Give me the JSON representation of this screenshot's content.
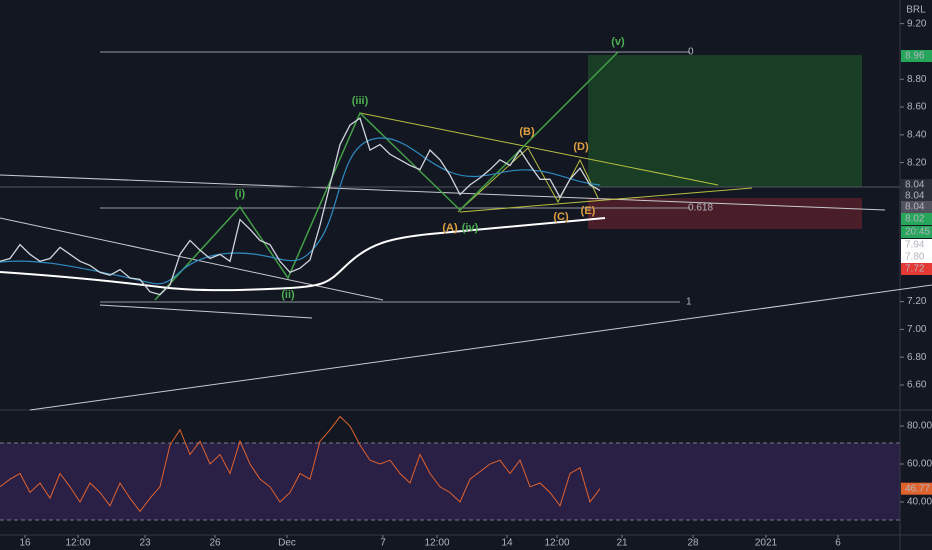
{
  "chart_data": {
    "type": "line",
    "currency": "BRL",
    "xlim": [
      0,
      180
    ],
    "xticks": [
      {
        "value": 5,
        "label": "16"
      },
      {
        "value": 15.6,
        "label": "12:00"
      },
      {
        "value": 29,
        "label": "23"
      },
      {
        "value": 43,
        "label": "26"
      },
      {
        "value": 57.4,
        "label": "Dec"
      },
      {
        "value": 76.6,
        "label": "7"
      },
      {
        "value": 87.4,
        "label": "12:00"
      },
      {
        "value": 101.4,
        "label": "14"
      },
      {
        "value": 111.4,
        "label": "12:00"
      },
      {
        "value": 124.4,
        "label": "21"
      },
      {
        "value": 138.6,
        "label": "28"
      },
      {
        "value": 153.2,
        "label": "2021"
      },
      {
        "value": 167.6,
        "label": "6"
      }
    ],
    "ylim": [
      6.42,
      9.37
    ],
    "yticks": [
      {
        "value": 9.2,
        "label": "9.20"
      },
      {
        "value": 8.8,
        "label": "8.80"
      },
      {
        "value": 8.6,
        "label": "8.60"
      },
      {
        "value": 8.4,
        "label": "8.40"
      },
      {
        "value": 8.2,
        "label": "8.20"
      },
      {
        "value": 7.2,
        "label": "7.20"
      },
      {
        "value": 7.0,
        "label": "7.00"
      },
      {
        "value": 6.8,
        "label": "6.80"
      },
      {
        "value": 6.6,
        "label": "6.60"
      }
    ],
    "series": [
      {
        "color": "#d0d4dc",
        "x": [
          0,
          2,
          4,
          6,
          8,
          10,
          12,
          14,
          16,
          18,
          20,
          22,
          24,
          26,
          28,
          30,
          32,
          34,
          36,
          38,
          40,
          42,
          44,
          46,
          48,
          50,
          52,
          54,
          56,
          58,
          60,
          62,
          64,
          66,
          68,
          70,
          72,
          74,
          76,
          78,
          80,
          82,
          84,
          86,
          88,
          90,
          92,
          94,
          96,
          98,
          100,
          102,
          104,
          106,
          108,
          110,
          112,
          114,
          116,
          118,
          120
        ],
        "values": [
          7.49,
          7.51,
          7.61,
          7.54,
          7.49,
          7.51,
          7.59,
          7.54,
          7.49,
          7.46,
          7.41,
          7.39,
          7.43,
          7.37,
          7.36,
          7.27,
          7.25,
          7.32,
          7.54,
          7.64,
          7.57,
          7.51,
          7.54,
          7.49,
          7.79,
          7.72,
          7.64,
          7.61,
          7.49,
          7.41,
          7.44,
          7.5,
          7.75,
          8.04,
          8.33,
          8.47,
          8.52,
          8.29,
          8.33,
          8.26,
          8.22,
          8.18,
          8.15,
          8.29,
          8.22,
          8.11,
          7.97,
          8.04,
          8.09,
          8.15,
          8.22,
          8.18,
          8.29,
          8.18,
          8.08,
          8.08,
          7.95,
          8.08,
          8.16,
          8.04,
          8.0
        ]
      }
    ],
    "price_tags": [
      {
        "label": "8.96",
        "color": "#26a65b"
      },
      {
        "label": "8.04",
        "color": "#2a2e39"
      },
      {
        "label": "8.04",
        "color": "#2a2e39"
      },
      {
        "label": "8.04",
        "color": "#50535e"
      },
      {
        "label": "8.02",
        "color": "#26a65b"
      },
      {
        "label": "20:45",
        "color": "#26a65b"
      },
      {
        "label": "7.94",
        "color": "#ffffff"
      },
      {
        "label": "7.80",
        "color": "#ffffff"
      },
      {
        "label": "7.72",
        "color": "#e53935"
      }
    ],
    "annotations": [
      {
        "label": "(i)",
        "color": "#4caf50"
      },
      {
        "label": "(ii)",
        "color": "#4caf50"
      },
      {
        "label": "(iii)",
        "color": "#4caf50"
      },
      {
        "label": "(iv)",
        "color": "#4caf50"
      },
      {
        "label": "(v)",
        "color": "#4caf50"
      },
      {
        "label": "(A)",
        "color": "#e0a040"
      },
      {
        "label": "(B)",
        "color": "#e0a040"
      },
      {
        "label": "(C)",
        "color": "#e0a040"
      },
      {
        "label": "(D)",
        "color": "#e0a040"
      },
      {
        "label": "(E)",
        "color": "#e0a040"
      }
    ],
    "fib_labels": [
      "0",
      "0.618",
      "1"
    ],
    "rsi": {
      "color": "#e0632e",
      "ylim": [
        22.6,
        87.4
      ],
      "yticks": [
        {
          "value": 80,
          "label": "80.00"
        },
        {
          "value": 60,
          "label": "60.00"
        },
        {
          "value": 40,
          "label": "40.00"
        }
      ],
      "x": [
        0,
        2,
        4,
        6,
        8,
        10,
        12,
        14,
        16,
        18,
        20,
        22,
        24,
        26,
        28,
        30,
        32,
        34,
        36,
        38,
        40,
        42,
        44,
        46,
        48,
        50,
        52,
        54,
        56,
        58,
        60,
        62,
        64,
        66,
        68,
        70,
        72,
        74,
        76,
        78,
        80,
        82,
        84,
        86,
        88,
        90,
        92,
        94,
        96,
        98,
        100,
        102,
        104,
        106,
        108,
        110,
        112,
        114,
        116,
        118,
        120
      ],
      "values": [
        48,
        52,
        55,
        45,
        50,
        42,
        55,
        48,
        40,
        50,
        45,
        38,
        50,
        42,
        35,
        42,
        48,
        70,
        78,
        65,
        72,
        60,
        65,
        55,
        72,
        60,
        52,
        48,
        40,
        45,
        55,
        52,
        72,
        78,
        85,
        80,
        70,
        62,
        60,
        62,
        55,
        50,
        65,
        55,
        48,
        45,
        40,
        52,
        56,
        60,
        62,
        55,
        62,
        48,
        50,
        45,
        38,
        55,
        58,
        40,
        47
      ],
      "last_label": "46.77"
    }
  }
}
